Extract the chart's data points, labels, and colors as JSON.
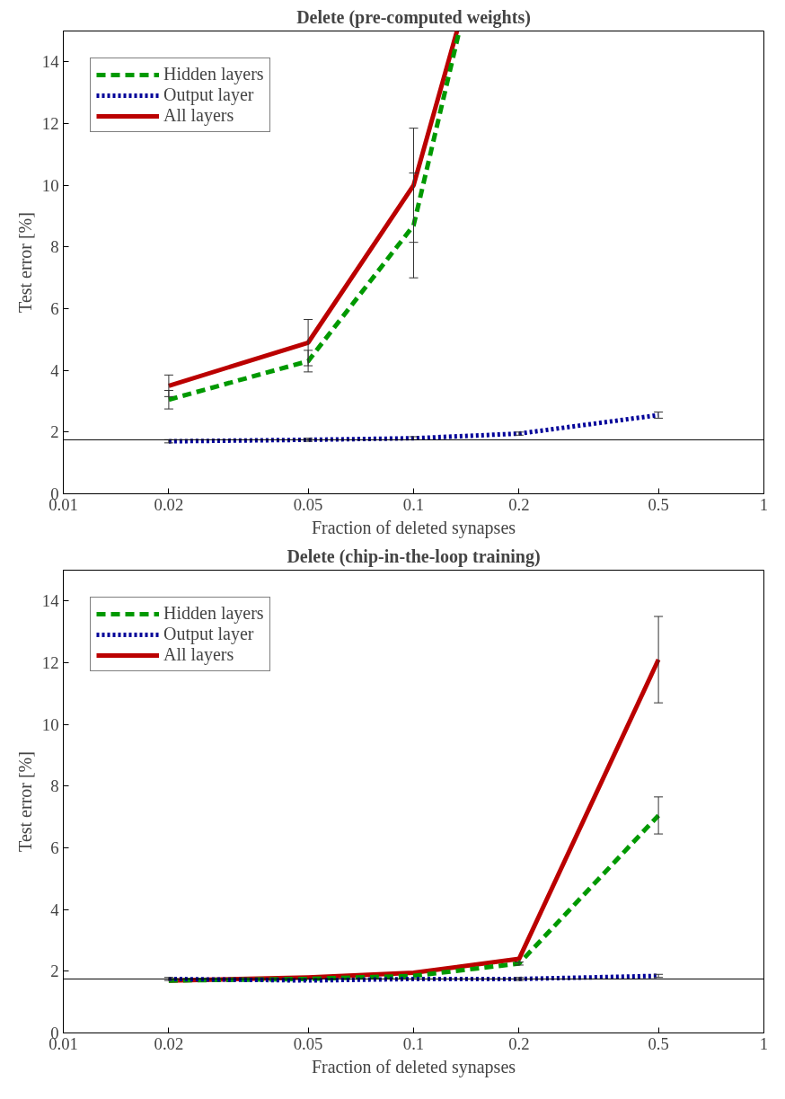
{
  "chart_data": [
    {
      "type": "line",
      "title": "Delete (pre-computed weights)",
      "xlabel": "Fraction of deleted synapses",
      "ylabel": "Test error [%]",
      "log": "x",
      "xlim": [
        0.01,
        1
      ],
      "xticks": [
        0.01,
        0.02,
        0.05,
        0.1,
        0.2,
        0.5,
        1
      ],
      "ylim": [
        0,
        15
      ],
      "yticks": [
        0,
        2,
        4,
        6,
        8,
        10,
        12,
        14
      ],
      "grid": false,
      "legend": "top left",
      "series": [
        {
          "name": "Hidden layers",
          "color": "#009900",
          "line_style": "dashed",
          "x": [
            0.02,
            0.05,
            0.1,
            0.135
          ],
          "values": [
            3.05,
            4.3,
            8.7,
            15
          ],
          "errors": [
            0.3,
            0.35,
            1.7,
            null
          ]
        },
        {
          "name": "Output layer",
          "color": "#000099",
          "line_style": "dotted",
          "x": [
            0.02,
            0.05,
            0.1,
            0.2,
            0.5
          ],
          "values": [
            1.7,
            1.75,
            1.8,
            1.95,
            2.55
          ],
          "errors": [
            0.05,
            0.05,
            0.05,
            0.05,
            0.1
          ]
        },
        {
          "name": "All layers",
          "color": "#bb0000",
          "line_style": "solid",
          "x": [
            0.02,
            0.05,
            0.1,
            0.133
          ],
          "values": [
            3.5,
            4.9,
            10,
            15
          ],
          "errors": [
            0.35,
            0.75,
            1.85,
            null
          ]
        }
      ],
      "ref_lines": [
        {
          "axis": "y",
          "value": 1.75,
          "color": "#000000"
        }
      ]
    },
    {
      "type": "line",
      "title": "Delete (chip-in-the-loop training)",
      "xlabel": "Fraction of deleted synapses",
      "ylabel": "Test error [%]",
      "log": "x",
      "xlim": [
        0.01,
        1
      ],
      "xticks": [
        0.01,
        0.02,
        0.05,
        0.1,
        0.2,
        0.5,
        1
      ],
      "ylim": [
        0,
        15
      ],
      "yticks": [
        0,
        2,
        4,
        6,
        8,
        10,
        12,
        14
      ],
      "grid": false,
      "legend": "top left",
      "series": [
        {
          "name": "Hidden layers",
          "color": "#009900",
          "line_style": "dashed",
          "x": [
            0.02,
            0.05,
            0.1,
            0.2,
            0.5
          ],
          "values": [
            1.7,
            1.75,
            1.85,
            2.25,
            7.05
          ],
          "errors": [
            null,
            null,
            null,
            0.05,
            0.6
          ]
        },
        {
          "name": "Output layer",
          "color": "#000099",
          "line_style": "dotted",
          "x": [
            0.02,
            0.05,
            0.1,
            0.2,
            0.5
          ],
          "values": [
            1.75,
            1.7,
            1.75,
            1.75,
            1.85
          ],
          "errors": [
            0.05,
            null,
            null,
            0.05,
            0.05
          ]
        },
        {
          "name": "All layers",
          "color": "#bb0000",
          "line_style": "solid",
          "x": [
            0.02,
            0.05,
            0.1,
            0.2,
            0.5
          ],
          "values": [
            1.7,
            1.8,
            1.95,
            2.4,
            12.1
          ],
          "errors": [
            null,
            null,
            null,
            null,
            1.4
          ]
        }
      ],
      "ref_lines": [
        {
          "axis": "y",
          "value": 1.75,
          "color": "#000000"
        }
      ]
    }
  ]
}
